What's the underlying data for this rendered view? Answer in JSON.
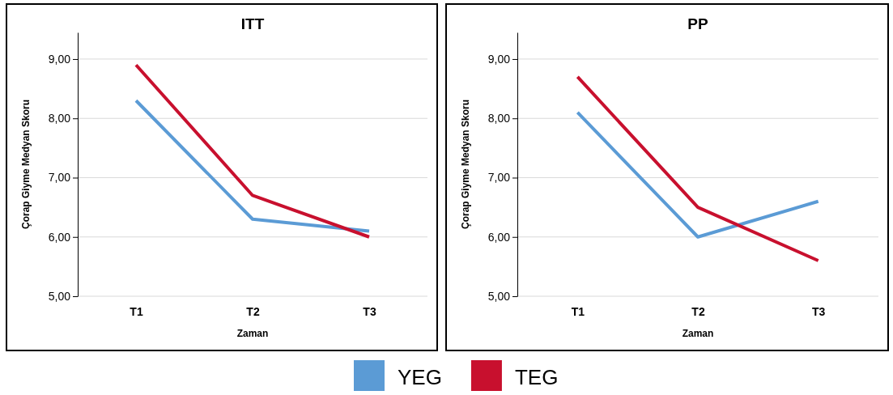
{
  "chart_data": [
    {
      "type": "line",
      "title": "ITT",
      "xlabel": "Zaman",
      "ylabel": "Çorap Giyme Medyan Skoru",
      "categories": [
        "T1",
        "T2",
        "T3"
      ],
      "ylim": [
        5,
        9.45
      ],
      "yticks": [
        {
          "value": 5,
          "label": "5,00"
        },
        {
          "value": 6,
          "label": "6,00"
        },
        {
          "value": 7,
          "label": "7,00"
        },
        {
          "value": 8,
          "label": "8,00"
        },
        {
          "value": 9,
          "label": "9,00"
        }
      ],
      "grid": "y",
      "legend": "bottom",
      "marker": "none",
      "series": [
        {
          "name": "YEG",
          "color": "#5b9bd5",
          "values": [
            8.3,
            6.3,
            6.1
          ]
        },
        {
          "name": "TEG",
          "color": "#c8102e",
          "values": [
            8.9,
            6.7,
            6.0
          ]
        }
      ]
    },
    {
      "type": "line",
      "title": "PP",
      "xlabel": "Zaman",
      "ylabel": "Çorap Giyme Medyan Skoru",
      "categories": [
        "T1",
        "T2",
        "T3"
      ],
      "ylim": [
        5,
        9.45
      ],
      "yticks": [
        {
          "value": 5,
          "label": "5,00"
        },
        {
          "value": 6,
          "label": "6,00"
        },
        {
          "value": 7,
          "label": "7,00"
        },
        {
          "value": 8,
          "label": "8,00"
        },
        {
          "value": 9,
          "label": "9,00"
        }
      ],
      "grid": "y",
      "legend": "bottom",
      "marker": "none",
      "series": [
        {
          "name": "YEG",
          "color": "#5b9bd5",
          "values": [
            8.1,
            6.0,
            6.6
          ]
        },
        {
          "name": "TEG",
          "color": "#c8102e",
          "values": [
            8.7,
            6.5,
            5.6
          ]
        }
      ]
    }
  ]
}
